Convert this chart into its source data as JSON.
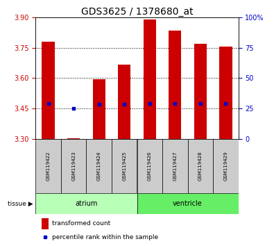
{
  "title": "GDS3625 / 1378680_at",
  "samples": [
    "GSM119422",
    "GSM119423",
    "GSM119424",
    "GSM119425",
    "GSM119426",
    "GSM119427",
    "GSM119428",
    "GSM119429"
  ],
  "red_top": [
    3.78,
    3.305,
    3.595,
    3.665,
    3.89,
    3.835,
    3.77,
    3.755
  ],
  "red_bottom": [
    3.3,
    3.3,
    3.3,
    3.3,
    3.3,
    3.3,
    3.3,
    3.3
  ],
  "blue_values": [
    3.475,
    3.45,
    3.47,
    3.47,
    3.475,
    3.475,
    3.475,
    3.475
  ],
  "ylim_left": [
    3.3,
    3.9
  ],
  "yticks_left": [
    3.3,
    3.45,
    3.6,
    3.75,
    3.9
  ],
  "ylim_right": [
    0,
    100
  ],
  "yticks_right": [
    0,
    25,
    50,
    75,
    100
  ],
  "tissue_groups": [
    {
      "label": "atrium",
      "start": 0,
      "end": 3,
      "color": "#b8ffb8"
    },
    {
      "label": "ventricle",
      "start": 4,
      "end": 7,
      "color": "#66ee66"
    }
  ],
  "bar_width": 0.5,
  "red_color": "#cc0000",
  "blue_color": "#0000cc",
  "title_fontsize": 10,
  "tick_fontsize": 7,
  "axis_label_color_left": "#cc0000",
  "axis_label_color_right": "#0000cc",
  "bg_color": "#ffffff",
  "sample_label_bg": "#cccccc"
}
